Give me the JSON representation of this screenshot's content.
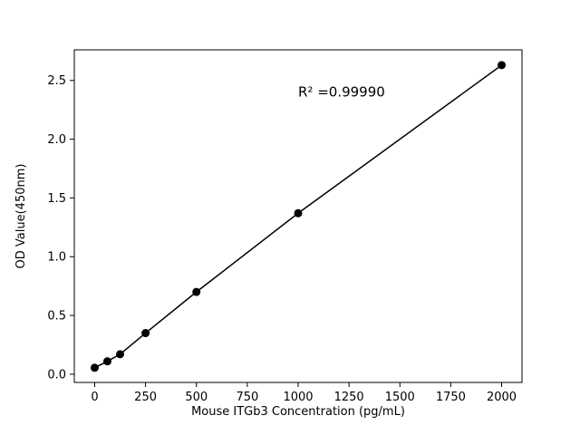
{
  "figure": {
    "background": "#ffffff"
  },
  "chart_data": {
    "type": "scatter",
    "title": "",
    "xlabel": "Mouse ITGb3 Concentration (pg/mL)",
    "ylabel": "OD Value(450nm)",
    "x": [
      0,
      62.5,
      125,
      250,
      500,
      1000,
      2000
    ],
    "y": [
      0.055,
      0.11,
      0.17,
      0.35,
      0.7,
      1.37,
      2.63
    ],
    "line_through_points": true,
    "xlim": [
      -100,
      2100
    ],
    "ylim": [
      -0.07,
      2.76
    ],
    "xticks": [
      0,
      250,
      500,
      750,
      1000,
      1250,
      1500,
      1750,
      2000
    ],
    "xtick_labels": [
      "0",
      "250",
      "500",
      "750",
      "1000",
      "1250",
      "1500",
      "1750",
      "2000"
    ],
    "yticks": [
      0.0,
      0.5,
      1.0,
      1.5,
      2.0,
      2.5
    ],
    "ytick_labels": [
      "0.0",
      "0.5",
      "1.0",
      "1.5",
      "2.0",
      "2.5"
    ],
    "annotation": {
      "text": "R² =0.99990",
      "x": 1000,
      "y": 2.4
    },
    "grid": false,
    "legend": null,
    "colors": {
      "marker": "#000000",
      "line": "#000000",
      "axis": "#000000",
      "background": "#ffffff"
    },
    "marker_radius": 4.5,
    "line_width": 1.5
  }
}
